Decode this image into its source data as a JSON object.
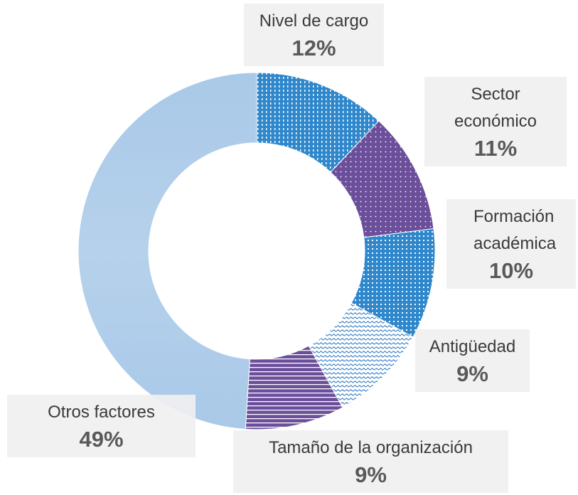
{
  "chart_data": {
    "type": "donut",
    "categories": [
      "Nivel de cargo",
      "Sector económico",
      "Formación académica",
      "Antigüedad",
      "Tamaño de la organización",
      "Otros factores"
    ],
    "values": [
      12,
      11,
      10,
      9,
      9,
      49
    ],
    "value_labels": [
      "12%",
      "11%",
      "10%",
      "9%",
      "9%",
      "49%"
    ],
    "colors": [
      "#2f87cc",
      "#6c4f9b",
      "#2f87cc",
      "#3a7fc4",
      "#6c4f9b",
      "#a9c9e8"
    ]
  }
}
